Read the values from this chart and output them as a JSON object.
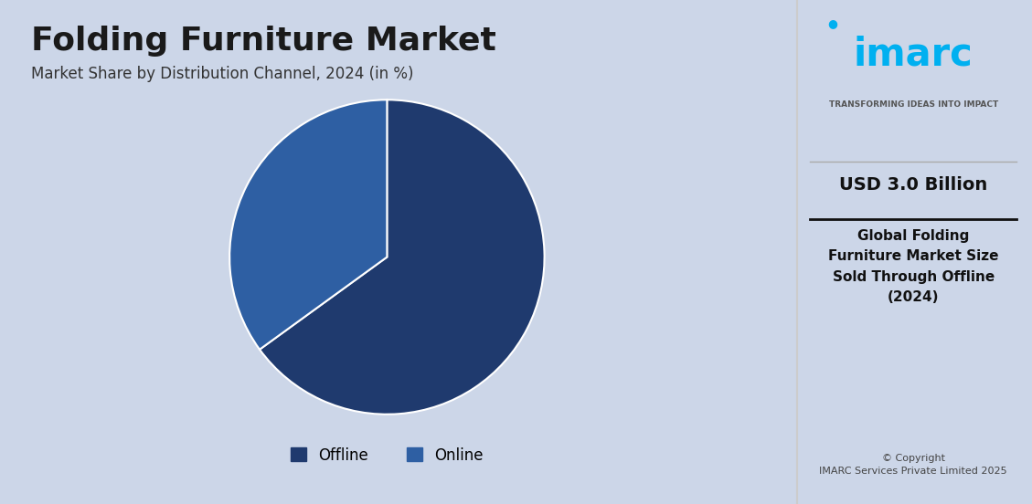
{
  "title": "Folding Furniture Market",
  "subtitle": "Market Share by Distribution Channel, 2024 (in %)",
  "slices": [
    65,
    35
  ],
  "labels": [
    "Offline",
    "Online"
  ],
  "colors": [
    "#1f3a6e",
    "#2e5fa3"
  ],
  "bg_color": "#ccd6e8",
  "right_panel_bg": "#ffffff",
  "usd_value": "USD 3.0 Billion",
  "right_desc": "Global Folding\nFurniture Market Size\nSold Through Offline\n(2024)",
  "copyright": "© Copyright\nIMARC Services Private Limited 2025",
  "imarc_tagline": "TRANSFORMING IDEAS INTO IMPACT",
  "legend_offline": "Offline",
  "legend_online": "Online",
  "title_fontsize": 26,
  "subtitle_fontsize": 12,
  "legend_fontsize": 12
}
